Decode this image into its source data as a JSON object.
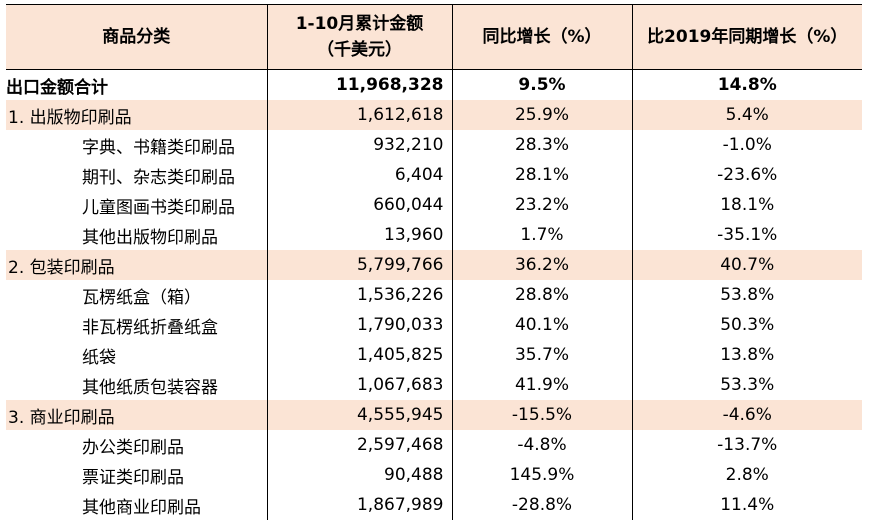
{
  "header": {
    "col1": "商品分类",
    "col2_line1": "1-10月累计金额",
    "col2_line2": "（千美元）",
    "col3": "同比增长（%）",
    "col4": "比2019年同期增长（%）"
  },
  "rows": [
    {
      "kind": "total",
      "name": "出口金额合计",
      "amount": "11,968,328",
      "yoy": "9.5%",
      "vs2019": "14.8%"
    },
    {
      "kind": "cat",
      "name": "1. 出版物印刷品",
      "amount": "1,612,618",
      "yoy": "25.9%",
      "vs2019": "5.4%"
    },
    {
      "kind": "sub",
      "name": "字典、书籍类印刷品",
      "amount": "932,210",
      "yoy": "28.3%",
      "vs2019": "-1.0%"
    },
    {
      "kind": "sub",
      "name": "期刊、杂志类印刷品",
      "amount": "6,404",
      "yoy": "28.1%",
      "vs2019": "-23.6%"
    },
    {
      "kind": "sub",
      "name": "儿童图画书类印刷品",
      "amount": "660,044",
      "yoy": "23.2%",
      "vs2019": "18.1%"
    },
    {
      "kind": "sub",
      "name": "其他出版物印刷品",
      "amount": "13,960",
      "yoy": "1.7%",
      "vs2019": "-35.1%"
    },
    {
      "kind": "cat",
      "name": "2. 包装印刷品",
      "amount": "5,799,766",
      "yoy": "36.2%",
      "vs2019": "40.7%"
    },
    {
      "kind": "sub",
      "name": "瓦楞纸盒（箱）",
      "amount": "1,536,226",
      "yoy": "28.8%",
      "vs2019": "53.8%"
    },
    {
      "kind": "sub",
      "name": "非瓦楞纸折叠纸盒",
      "amount": "1,790,033",
      "yoy": "40.1%",
      "vs2019": "50.3%"
    },
    {
      "kind": "sub",
      "name": "纸袋",
      "amount": "1,405,825",
      "yoy": "35.7%",
      "vs2019": "13.8%"
    },
    {
      "kind": "sub",
      "name": "其他纸质包装容器",
      "amount": "1,067,683",
      "yoy": "41.9%",
      "vs2019": "53.3%"
    },
    {
      "kind": "cat",
      "name": "3. 商业印刷品",
      "amount": "4,555,945",
      "yoy": "-15.5%",
      "vs2019": "-4.6%"
    },
    {
      "kind": "sub",
      "name": "办公类印刷品",
      "amount": "2,597,468",
      "yoy": "-4.8%",
      "vs2019": "-13.7%"
    },
    {
      "kind": "sub",
      "name": "票证类印刷品",
      "amount": "90,488",
      "yoy": "145.9%",
      "vs2019": "2.8%"
    },
    {
      "kind": "sub",
      "name": "其他商业印刷品",
      "amount": "1,867,989",
      "yoy": "-28.8%",
      "vs2019": "11.4%"
    }
  ]
}
